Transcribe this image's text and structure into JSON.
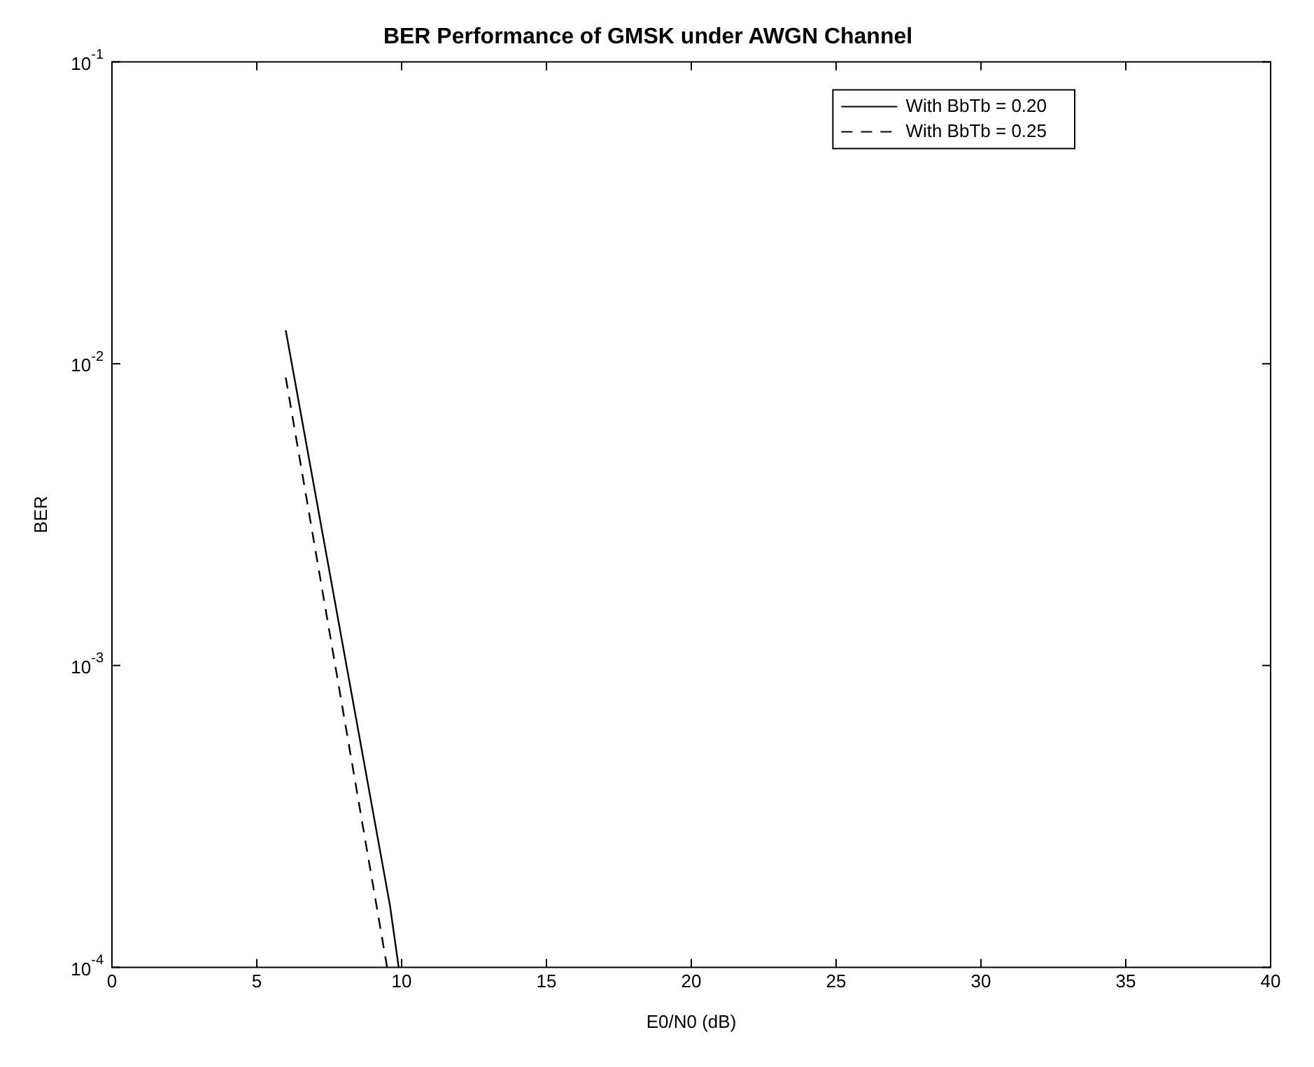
{
  "chart_data": {
    "type": "line",
    "title": "BER Performance of GMSK under AWGN Channel",
    "xlabel": "E0/N0 (dB)",
    "ylabel": "BER",
    "log": "y",
    "grid": false,
    "legend": "top right",
    "marker": "none",
    "xlim": [
      0,
      40
    ],
    "xticks": [
      0,
      5,
      10,
      15,
      20,
      25,
      30,
      35,
      40
    ],
    "ylim": [
      0.0001,
      0.1
    ],
    "yticks": [
      {
        "value": 0.0001,
        "label": "10$^{-4}$"
      },
      {
        "value": 0.001,
        "label": "10$^{-3}$"
      },
      {
        "value": 0.01,
        "label": "10$^{-2}$"
      },
      {
        "value": 0.1,
        "label": "10$^{-1}$"
      }
    ],
    "series": [
      {
        "name": "With BbTb = 0.20",
        "color": "#000000",
        "line_style": "solid",
        "x": [
          6,
          9.6,
          9.9
        ],
        "values": [
          0.0129,
          0.00016,
          0.0001
        ]
      },
      {
        "name": "With BbTb = 0.25",
        "color": "#000000",
        "line_style": "dashed",
        "x": [
          6,
          9.5
        ],
        "values": [
          0.009,
          0.0001
        ]
      }
    ]
  }
}
